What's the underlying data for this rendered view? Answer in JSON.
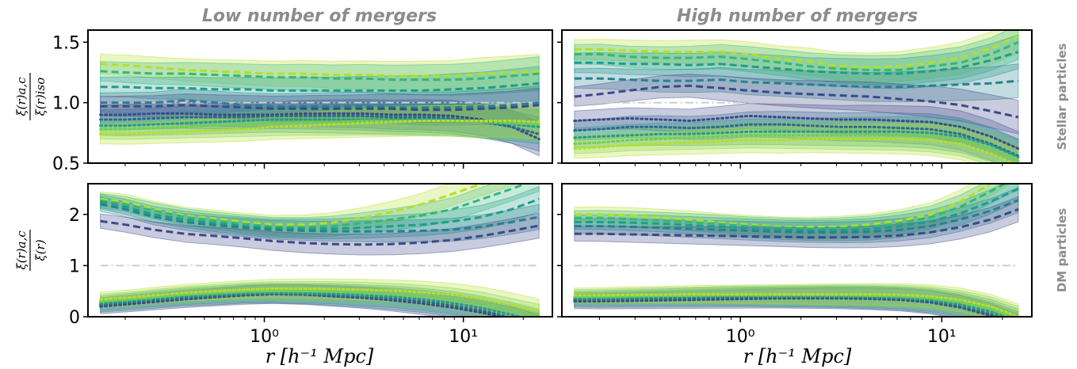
{
  "figure": {
    "col_titles": [
      "Low number of mergers",
      "High number of mergers"
    ],
    "row_labels": [
      "Stellar particles",
      "DM particles"
    ],
    "xlabel": "r [h⁻¹ Mpc]",
    "ylabel_top_num": "ξ(r)a,c",
    "ylabel_top_den": "ξ(r)iso",
    "ylabel_bottom_num": "ξ(r)a,c",
    "ylabel_bottom_den": "ξ(r)",
    "xtick_labels": [
      "10⁰",
      "10¹"
    ],
    "ytick_labels_top": [
      "0.5",
      "1.0",
      "1.5"
    ],
    "ytick_labels_bottom": [
      "0",
      "1",
      "2"
    ]
  },
  "colors": [
    "#3e4989",
    "#31688e",
    "#26828e",
    "#1f9e89",
    "#35b779",
    "#6ece58",
    "#b5de2b"
  ],
  "chart_data": [
    {
      "type": "line",
      "panel": "top-left",
      "title": "Low number of mergers",
      "xscale": "log",
      "xlim": [
        0.13,
        28
      ],
      "ylim": [
        0.5,
        1.6
      ],
      "x": [
        0.15,
        0.2,
        0.28,
        0.4,
        0.56,
        0.8,
        1.1,
        1.6,
        2.2,
        3.1,
        4.4,
        6.2,
        8.8,
        12.4,
        17.5,
        24
      ],
      "reference": {
        "y": 1.0,
        "style": "dashdot",
        "color": "#cccccc"
      },
      "dashed": [
        [
          1.32,
          1.31,
          1.29,
          1.27,
          1.26,
          1.25,
          1.24,
          1.24,
          1.23,
          1.23,
          1.22,
          1.22,
          1.22,
          1.24,
          1.25,
          1.26
        ],
        [
          1.26,
          1.25,
          1.24,
          1.24,
          1.23,
          1.22,
          1.21,
          1.21,
          1.2,
          1.2,
          1.19,
          1.19,
          1.19,
          1.2,
          1.22,
          1.24
        ],
        [
          1.13,
          1.13,
          1.12,
          1.12,
          1.11,
          1.11,
          1.1,
          1.1,
          1.1,
          1.1,
          1.1,
          1.1,
          1.11,
          1.12,
          1.14,
          1.16
        ],
        [
          1.0,
          1.0,
          1.0,
          1.02,
          1.0,
          0.98,
          0.97,
          0.97,
          0.97,
          0.97,
          0.96,
          0.96,
          0.96,
          0.97,
          0.98,
          1.0
        ],
        [
          0.97,
          0.97,
          0.97,
          0.98,
          0.97,
          0.96,
          0.95,
          0.95,
          0.95,
          0.95,
          0.95,
          0.94,
          0.94,
          0.95,
          0.96,
          0.98
        ]
      ],
      "dotted": [
        [
          0.9,
          0.9,
          0.91,
          0.91,
          0.9,
          0.9,
          0.9,
          0.91,
          0.91,
          0.91,
          0.9,
          0.9,
          0.89,
          0.86,
          0.8,
          0.7
        ],
        [
          0.86,
          0.86,
          0.87,
          0.88,
          0.88,
          0.88,
          0.89,
          0.89,
          0.89,
          0.89,
          0.88,
          0.88,
          0.87,
          0.84,
          0.8,
          0.74
        ],
        [
          0.81,
          0.81,
          0.82,
          0.83,
          0.84,
          0.85,
          0.86,
          0.86,
          0.86,
          0.86,
          0.86,
          0.86,
          0.86,
          0.84,
          0.82,
          0.8
        ],
        [
          0.78,
          0.78,
          0.79,
          0.8,
          0.81,
          0.82,
          0.83,
          0.84,
          0.84,
          0.85,
          0.85,
          0.85,
          0.85,
          0.84,
          0.83,
          0.82
        ],
        [
          0.74,
          0.74,
          0.75,
          0.76,
          0.77,
          0.78,
          0.8,
          0.81,
          0.82,
          0.83,
          0.84,
          0.85,
          0.85,
          0.85,
          0.85,
          0.84
        ]
      ]
    },
    {
      "type": "line",
      "panel": "top-right",
      "title": "High number of mergers",
      "xscale": "log",
      "xlim": [
        0.13,
        28
      ],
      "ylim": [
        0.5,
        1.6
      ],
      "x": [
        0.15,
        0.2,
        0.28,
        0.4,
        0.56,
        0.8,
        1.1,
        1.6,
        2.2,
        3.1,
        4.4,
        6.2,
        8.8,
        12.4,
        17.5,
        24
      ],
      "reference": {
        "y": 1.0,
        "style": "dashdot",
        "color": "#cccccc"
      },
      "dashed": [
        [
          1.44,
          1.44,
          1.43,
          1.42,
          1.42,
          1.42,
          1.4,
          1.36,
          1.34,
          1.3,
          1.29,
          1.3,
          1.33,
          1.37,
          1.45,
          1.55
        ],
        [
          1.4,
          1.4,
          1.38,
          1.37,
          1.37,
          1.38,
          1.36,
          1.33,
          1.3,
          1.28,
          1.27,
          1.27,
          1.3,
          1.33,
          1.4,
          1.5
        ],
        [
          1.33,
          1.33,
          1.32,
          1.32,
          1.31,
          1.32,
          1.3,
          1.28,
          1.26,
          1.25,
          1.24,
          1.24,
          1.26,
          1.29,
          1.35,
          1.42
        ],
        [
          1.2,
          1.2,
          1.19,
          1.18,
          1.18,
          1.19,
          1.17,
          1.16,
          1.15,
          1.14,
          1.13,
          1.13,
          1.14,
          1.15,
          1.16,
          1.18
        ],
        [
          1.05,
          1.07,
          1.1,
          1.13,
          1.14,
          1.12,
          1.1,
          1.08,
          1.07,
          1.06,
          1.05,
          1.03,
          1.01,
          0.98,
          0.93,
          0.88
        ]
      ],
      "dotted": [
        [
          0.85,
          0.86,
          0.87,
          0.86,
          0.85,
          0.87,
          0.89,
          0.88,
          0.87,
          0.86,
          0.86,
          0.85,
          0.84,
          0.8,
          0.72,
          0.62
        ],
        [
          0.77,
          0.78,
          0.8,
          0.8,
          0.79,
          0.8,
          0.82,
          0.82,
          0.81,
          0.8,
          0.8,
          0.79,
          0.78,
          0.74,
          0.66,
          0.56
        ],
        [
          0.71,
          0.72,
          0.73,
          0.74,
          0.74,
          0.75,
          0.76,
          0.76,
          0.76,
          0.76,
          0.76,
          0.76,
          0.75,
          0.72,
          0.65,
          0.55
        ],
        [
          0.66,
          0.67,
          0.69,
          0.7,
          0.71,
          0.72,
          0.73,
          0.73,
          0.73,
          0.73,
          0.73,
          0.73,
          0.72,
          0.69,
          0.62,
          0.52
        ],
        [
          0.62,
          0.63,
          0.65,
          0.66,
          0.67,
          0.68,
          0.69,
          0.69,
          0.7,
          0.7,
          0.7,
          0.7,
          0.69,
          0.66,
          0.58,
          0.48
        ]
      ]
    },
    {
      "type": "line",
      "panel": "bottom-left",
      "xscale": "log",
      "xlim": [
        0.13,
        28
      ],
      "ylim": [
        0,
        2.6
      ],
      "x": [
        0.15,
        0.2,
        0.28,
        0.4,
        0.56,
        0.8,
        1.1,
        1.6,
        2.2,
        3.1,
        4.4,
        6.2,
        8.8,
        12.4,
        17.5,
        24
      ],
      "reference": {
        "y": 1.0,
        "style": "dashdot",
        "color": "#cccccc"
      },
      "dashed": [
        [
          2.3,
          2.25,
          2.1,
          1.98,
          1.92,
          1.85,
          1.8,
          1.8,
          1.84,
          1.93,
          2.05,
          2.2,
          2.4,
          2.6,
          2.8,
          3.0
        ],
        [
          2.27,
          2.2,
          2.07,
          1.95,
          1.88,
          1.81,
          1.76,
          1.75,
          1.77,
          1.83,
          1.9,
          1.98,
          2.1,
          2.3,
          2.5,
          2.7
        ],
        [
          2.25,
          2.15,
          2.0,
          1.9,
          1.83,
          1.77,
          1.73,
          1.72,
          1.72,
          1.74,
          1.77,
          1.8,
          1.86,
          1.95,
          2.1,
          2.3
        ],
        [
          2.2,
          2.1,
          1.95,
          1.85,
          1.79,
          1.74,
          1.7,
          1.68,
          1.67,
          1.67,
          1.67,
          1.68,
          1.7,
          1.76,
          1.85,
          1.95
        ],
        [
          1.87,
          1.8,
          1.7,
          1.62,
          1.58,
          1.53,
          1.48,
          1.44,
          1.42,
          1.41,
          1.42,
          1.45,
          1.5,
          1.58,
          1.68,
          1.78
        ]
      ],
      "dotted": [
        [
          0.2,
          0.24,
          0.29,
          0.34,
          0.38,
          0.42,
          0.44,
          0.43,
          0.4,
          0.37,
          0.32,
          0.26,
          0.18,
          0.08,
          -0.05,
          -0.2
        ],
        [
          0.23,
          0.27,
          0.32,
          0.37,
          0.4,
          0.44,
          0.45,
          0.44,
          0.42,
          0.39,
          0.35,
          0.3,
          0.22,
          0.12,
          -0.02,
          -0.15
        ],
        [
          0.26,
          0.3,
          0.35,
          0.4,
          0.43,
          0.46,
          0.47,
          0.46,
          0.45,
          0.42,
          0.39,
          0.34,
          0.27,
          0.17,
          0.04,
          -0.1
        ],
        [
          0.3,
          0.33,
          0.38,
          0.43,
          0.46,
          0.49,
          0.5,
          0.5,
          0.49,
          0.47,
          0.44,
          0.4,
          0.34,
          0.25,
          0.12,
          0.0
        ],
        [
          0.34,
          0.37,
          0.42,
          0.47,
          0.5,
          0.53,
          0.55,
          0.55,
          0.54,
          0.53,
          0.51,
          0.48,
          0.43,
          0.35,
          0.23,
          0.1
        ]
      ]
    },
    {
      "type": "line",
      "panel": "bottom-right",
      "xscale": "log",
      "xlim": [
        0.13,
        28
      ],
      "ylim": [
        0,
        2.6
      ],
      "x": [
        0.15,
        0.2,
        0.28,
        0.4,
        0.56,
        0.8,
        1.1,
        1.6,
        2.2,
        3.1,
        4.4,
        6.2,
        8.8,
        12.4,
        17.5,
        24
      ],
      "reference": {
        "y": 1.0,
        "style": "dashdot",
        "color": "#cccccc"
      },
      "dashed": [
        [
          2.0,
          2.0,
          1.98,
          1.94,
          1.9,
          1.84,
          1.8,
          1.76,
          1.75,
          1.76,
          1.8,
          1.88,
          2.0,
          2.25,
          2.6,
          2.95
        ],
        [
          1.93,
          1.93,
          1.91,
          1.88,
          1.85,
          1.81,
          1.77,
          1.74,
          1.72,
          1.73,
          1.76,
          1.83,
          1.94,
          2.15,
          2.45,
          2.75
        ],
        [
          1.85,
          1.85,
          1.84,
          1.82,
          1.79,
          1.76,
          1.73,
          1.7,
          1.69,
          1.69,
          1.71,
          1.77,
          1.86,
          2.02,
          2.25,
          2.5
        ],
        [
          1.77,
          1.77,
          1.76,
          1.74,
          1.72,
          1.7,
          1.68,
          1.66,
          1.65,
          1.65,
          1.66,
          1.7,
          1.77,
          1.9,
          2.07,
          2.28
        ],
        [
          1.62,
          1.62,
          1.61,
          1.6,
          1.59,
          1.58,
          1.57,
          1.56,
          1.55,
          1.55,
          1.56,
          1.59,
          1.65,
          1.75,
          1.9,
          2.1
        ]
      ],
      "dotted": [
        [
          0.3,
          0.3,
          0.31,
          0.32,
          0.33,
          0.34,
          0.35,
          0.36,
          0.36,
          0.36,
          0.35,
          0.33,
          0.28,
          0.18,
          0.02,
          -0.2
        ],
        [
          0.33,
          0.33,
          0.34,
          0.35,
          0.36,
          0.37,
          0.38,
          0.38,
          0.38,
          0.38,
          0.37,
          0.35,
          0.3,
          0.2,
          0.05,
          -0.15
        ],
        [
          0.36,
          0.36,
          0.37,
          0.38,
          0.39,
          0.4,
          0.4,
          0.4,
          0.4,
          0.4,
          0.39,
          0.37,
          0.33,
          0.24,
          0.1,
          -0.1
        ],
        [
          0.39,
          0.39,
          0.4,
          0.41,
          0.41,
          0.42,
          0.42,
          0.42,
          0.42,
          0.42,
          0.41,
          0.4,
          0.36,
          0.28,
          0.15,
          -0.05
        ],
        [
          0.42,
          0.42,
          0.43,
          0.43,
          0.44,
          0.44,
          0.44,
          0.44,
          0.44,
          0.44,
          0.44,
          0.43,
          0.4,
          0.33,
          0.2,
          0.0
        ]
      ]
    }
  ]
}
